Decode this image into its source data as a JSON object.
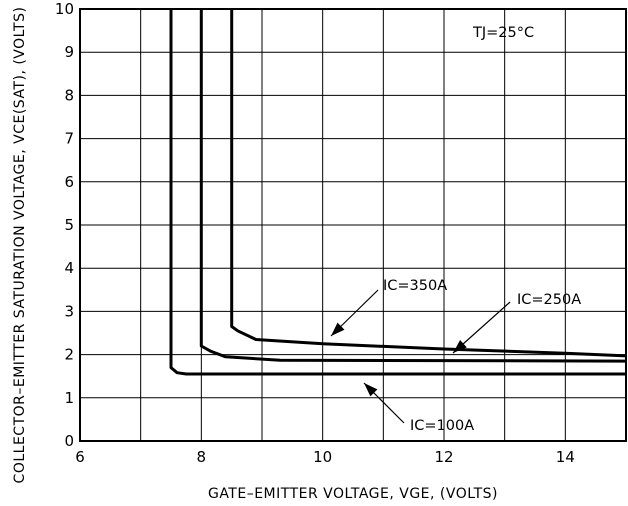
{
  "chart_data": {
    "type": "line",
    "title": "",
    "xlabel": "GATE–EMITTER VOLTAGE, VGE, (VOLTS)",
    "ylabel": "COLLECTOR–EMITTER SATURATION VOLTAGE, VCE(SAT), (VOLTS)",
    "xlim": [
      6,
      15
    ],
    "ylim": [
      0,
      10
    ],
    "x_ticks": [
      6,
      8,
      10,
      12,
      14
    ],
    "y_ticks": [
      0,
      1,
      2,
      3,
      4,
      5,
      6,
      7,
      8,
      9,
      10
    ],
    "grid": true,
    "condition": "TJ=25°C",
    "series": [
      {
        "name": "IC=100A",
        "points": [
          [
            7.5,
            10
          ],
          [
            7.5,
            1.7
          ],
          [
            7.6,
            1.58
          ],
          [
            7.75,
            1.55
          ],
          [
            15,
            1.55
          ]
        ]
      },
      {
        "name": "IC=250A",
        "points": [
          [
            8.0,
            10
          ],
          [
            8.0,
            2.2
          ],
          [
            8.15,
            2.08
          ],
          [
            8.4,
            1.95
          ],
          [
            9.3,
            1.87
          ],
          [
            15,
            1.85
          ]
        ]
      },
      {
        "name": "IC=350A",
        "points": [
          [
            8.5,
            10
          ],
          [
            8.5,
            2.65
          ],
          [
            8.6,
            2.55
          ],
          [
            8.9,
            2.35
          ],
          [
            10,
            2.25
          ],
          [
            12,
            2.13
          ],
          [
            14,
            2.03
          ],
          [
            15,
            1.97
          ]
        ]
      }
    ]
  }
}
